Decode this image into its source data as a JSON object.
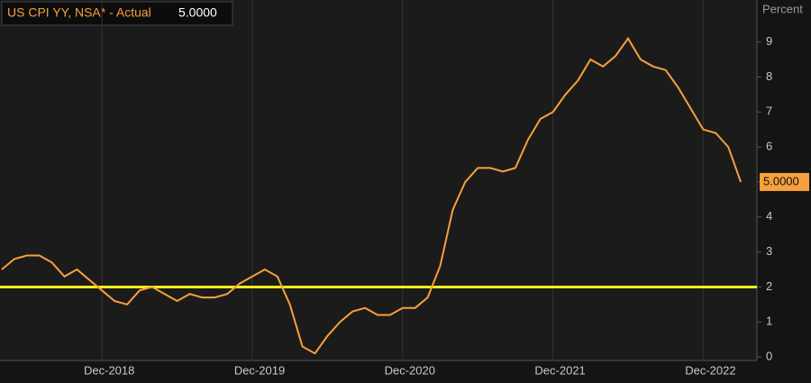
{
  "chart_data": {
    "type": "line",
    "y_axis_label": "Percent",
    "x": [
      "Apr-2018",
      "May-2018",
      "Jun-2018",
      "Jul-2018",
      "Aug-2018",
      "Sep-2018",
      "Oct-2018",
      "Nov-2018",
      "Dec-2018",
      "Jan-2019",
      "Feb-2019",
      "Mar-2019",
      "Apr-2019",
      "May-2019",
      "Jun-2019",
      "Jul-2019",
      "Aug-2019",
      "Sep-2019",
      "Oct-2019",
      "Nov-2019",
      "Dec-2019",
      "Jan-2020",
      "Feb-2020",
      "Mar-2020",
      "Apr-2020",
      "May-2020",
      "Jun-2020",
      "Jul-2020",
      "Aug-2020",
      "Sep-2020",
      "Oct-2020",
      "Nov-2020",
      "Dec-2020",
      "Jan-2021",
      "Feb-2021",
      "Mar-2021",
      "Apr-2021",
      "May-2021",
      "Jun-2021",
      "Jul-2021",
      "Aug-2021",
      "Sep-2021",
      "Oct-2021",
      "Nov-2021",
      "Dec-2021",
      "Jan-2022",
      "Feb-2022",
      "Mar-2022",
      "Apr-2022",
      "May-2022",
      "Jun-2022",
      "Jul-2022",
      "Aug-2022",
      "Sep-2022",
      "Oct-2022",
      "Nov-2022",
      "Dec-2022",
      "Jan-2023",
      "Feb-2023",
      "Mar-2023"
    ],
    "series": [
      {
        "name": "US CPI YY, NSA* - Actual",
        "color": "#f7a03c",
        "latest": "5.0000",
        "values": [
          2.5,
          2.8,
          2.9,
          2.9,
          2.7,
          2.3,
          2.5,
          2.2,
          1.9,
          1.6,
          1.5,
          1.9,
          2.0,
          1.8,
          1.6,
          1.8,
          1.7,
          1.7,
          1.8,
          2.1,
          2.3,
          2.5,
          2.3,
          1.5,
          0.3,
          0.1,
          0.6,
          1.0,
          1.3,
          1.4,
          1.2,
          1.2,
          1.4,
          1.4,
          1.7,
          2.6,
          4.2,
          5.0,
          5.4,
          5.4,
          5.3,
          5.4,
          6.2,
          6.8,
          7.0,
          7.5,
          7.9,
          8.5,
          8.3,
          8.6,
          9.1,
          8.5,
          8.3,
          8.2,
          7.7,
          7.1,
          6.5,
          6.4,
          6.0,
          5.0
        ]
      }
    ],
    "reference_line": {
      "value": 2,
      "color": "#f2ee1c"
    },
    "xticks": [
      "Dec-2018",
      "Dec-2019",
      "Dec-2020",
      "Dec-2021",
      "Dec-2022"
    ],
    "ylim": [
      -0.1,
      10.2
    ],
    "yticks": [
      0,
      1,
      2,
      3,
      4,
      5,
      6,
      7,
      8,
      9
    ],
    "grid": true
  }
}
